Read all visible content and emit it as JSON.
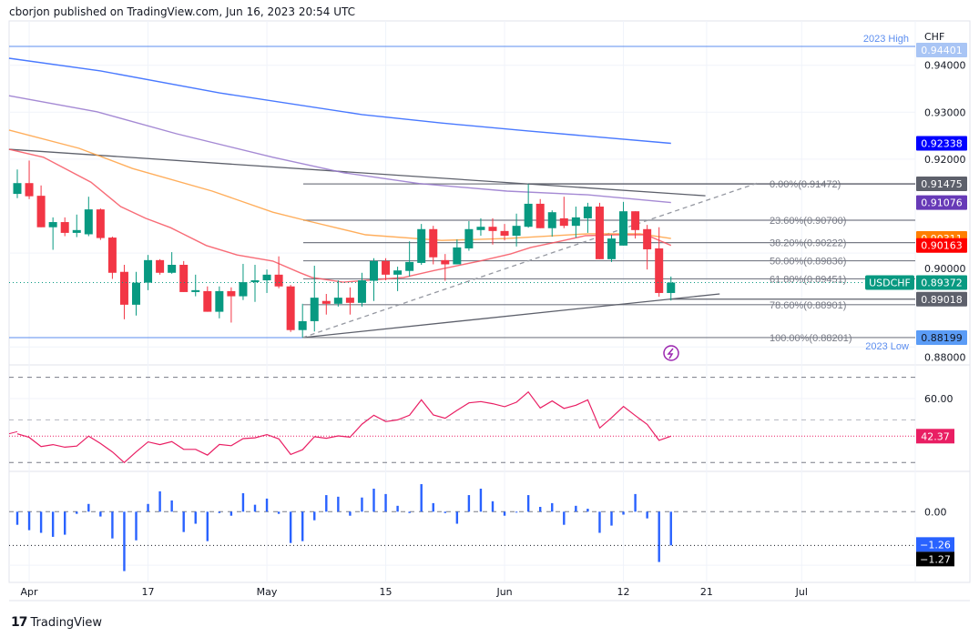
{
  "header": {
    "published": "cborjon published on TradingView.com, Jun 16, 2023 20:54 UTC"
  },
  "footer": {
    "brand": "TradingView",
    "logo_icon": "tradingview-logo-icon"
  },
  "colors": {
    "up": "#089981",
    "down": "#f23645",
    "ma_blue": "#2962ff",
    "ma_purple": "#9575cd",
    "ma_orange": "#ffa040",
    "ma_red": "#f7525f",
    "rsi": "#e91e63",
    "histogram": "#2962ff",
    "year_level": "#5b8def",
    "fib": "#787b86"
  },
  "chart_data": [
    {
      "type": "candlestick",
      "symbol": "USDCHF",
      "currency": "CHF",
      "y_ticks": [
        "0.94000",
        "0.93000",
        "0.92000",
        "0.90000",
        "0.88000"
      ],
      "x_ticks": [
        {
          "label": "Apr",
          "bar": 1
        },
        {
          "label": "17",
          "bar": 11
        },
        {
          "label": "May",
          "bar": 21
        },
        {
          "label": "15",
          "bar": 31
        },
        {
          "label": "Jun",
          "bar": 41
        },
        {
          "label": "12",
          "bar": 51
        },
        {
          "label": "21",
          "bar": 58
        },
        {
          "label": "Jul",
          "bar": 66
        }
      ],
      "ohlc": [
        [
          0.9126,
          0.9178,
          0.9117,
          0.9149
        ],
        [
          0.9149,
          0.9197,
          0.9115,
          0.9121
        ],
        [
          0.9122,
          0.9144,
          0.9055,
          0.9055
        ],
        [
          0.9055,
          0.9076,
          0.9007,
          0.9066
        ],
        [
          0.9066,
          0.9076,
          0.9036,
          0.9043
        ],
        [
          0.9043,
          0.9082,
          0.9034,
          0.9049
        ],
        [
          0.904,
          0.912,
          0.9036,
          0.9093
        ],
        [
          0.9093,
          0.9095,
          0.9028,
          0.9032
        ],
        [
          0.9033,
          0.9035,
          0.8945,
          0.8958
        ],
        [
          0.896,
          0.8975,
          0.8859,
          0.889
        ],
        [
          0.889,
          0.896,
          0.8867,
          0.8937
        ],
        [
          0.8937,
          0.8996,
          0.8921,
          0.8985
        ],
        [
          0.8985,
          0.8987,
          0.8954,
          0.8958
        ],
        [
          0.8958,
          0.9002,
          0.8956,
          0.8975
        ],
        [
          0.8975,
          0.8983,
          0.8917,
          0.8917
        ],
        [
          0.8917,
          0.8954,
          0.8908,
          0.8921
        ],
        [
          0.8919,
          0.8929,
          0.8875,
          0.8875
        ],
        [
          0.8875,
          0.8929,
          0.8861,
          0.8919
        ],
        [
          0.8919,
          0.8927,
          0.8852,
          0.8908
        ],
        [
          0.8908,
          0.8977,
          0.89,
          0.8938
        ],
        [
          0.8938,
          0.8975,
          0.8896,
          0.8942
        ],
        [
          0.8942,
          0.8965,
          0.8915,
          0.8954
        ],
        [
          0.8954,
          0.8993,
          0.8925,
          0.8929
        ],
        [
          0.8929,
          0.8932,
          0.8832,
          0.8836
        ],
        [
          0.8836,
          0.8892,
          0.882,
          0.8855
        ],
        [
          0.8855,
          0.8973,
          0.8833,
          0.8905
        ],
        [
          0.8898,
          0.8913,
          0.8869,
          0.8892
        ],
        [
          0.8892,
          0.8942,
          0.8886,
          0.8905
        ],
        [
          0.8905,
          0.8927,
          0.8869,
          0.8894
        ],
        [
          0.8894,
          0.8958,
          0.8886,
          0.8942
        ],
        [
          0.8941,
          0.8989,
          0.8898,
          0.8983
        ],
        [
          0.8983,
          0.8989,
          0.8942,
          0.8954
        ],
        [
          0.8954,
          0.8971,
          0.8919,
          0.8963
        ],
        [
          0.8962,
          0.9025,
          0.895,
          0.8981
        ],
        [
          0.8979,
          0.9062,
          0.8975,
          0.9051
        ],
        [
          0.9051,
          0.9058,
          0.8976,
          0.8991
        ],
        [
          0.8985,
          0.8998,
          0.8941,
          0.8976
        ],
        [
          0.8976,
          0.9029,
          0.8976,
          0.9012
        ],
        [
          0.901,
          0.9068,
          0.9005,
          0.9051
        ],
        [
          0.9049,
          0.9074,
          0.9037,
          0.9056
        ],
        [
          0.9056,
          0.9074,
          0.9018,
          0.9047
        ],
        [
          0.9047,
          0.9062,
          0.9027,
          0.9037
        ],
        [
          0.9037,
          0.9084,
          0.9014,
          0.9058
        ],
        [
          0.9056,
          0.9147,
          0.9054,
          0.9105
        ],
        [
          0.9105,
          0.9115,
          0.9053,
          0.9053
        ],
        [
          0.9053,
          0.9091,
          0.9035,
          0.9087
        ],
        [
          0.9074,
          0.912,
          0.9053,
          0.9058
        ],
        [
          0.9058,
          0.9099,
          0.9033,
          0.9076
        ],
        [
          0.9074,
          0.9107,
          0.9043,
          0.9099
        ],
        [
          0.9099,
          0.9107,
          0.8987,
          0.8987
        ],
        [
          0.8987,
          0.9039,
          0.8981,
          0.9031
        ],
        [
          0.9016,
          0.9109,
          0.9016,
          0.9089
        ],
        [
          0.9089,
          0.9089,
          0.9031,
          0.9049
        ],
        [
          0.9051,
          0.906,
          0.8965,
          0.9008
        ],
        [
          0.901,
          0.9055,
          0.8907,
          0.8915
        ],
        [
          0.8915,
          0.895,
          0.8899,
          0.89372
        ]
      ],
      "moving_averages": [
        {
          "color_key": "ma_blue",
          "last": "0.92338",
          "label_bg": "#0000ff",
          "points": [
            [
              -0.7,
              0.9415
            ],
            [
              7,
              0.9388
            ],
            [
              17,
              0.9341
            ],
            [
              29,
              0.9295
            ],
            [
              35.7,
              0.9277
            ],
            [
              43,
              0.926
            ],
            [
              55,
              0.92338
            ]
          ]
        },
        {
          "color_key": "ma_purple",
          "last": "0.91076",
          "label_bg": "#673ab7",
          "points": [
            [
              -0.7,
              0.9335
            ],
            [
              6.7,
              0.9301
            ],
            [
              13.4,
              0.9254
            ],
            [
              21.5,
              0.9204
            ],
            [
              27.5,
              0.9171
            ],
            [
              33.8,
              0.9148
            ],
            [
              41.2,
              0.9132
            ],
            [
              48,
              0.9124
            ],
            [
              55,
              0.91076
            ]
          ]
        },
        {
          "color_key": "ma_orange",
          "last": "0.90311",
          "label_bg": "#ff7f00",
          "points": [
            [
              -0.7,
              0.9262
            ],
            [
              5.2,
              0.9223
            ],
            [
              9.7,
              0.918
            ],
            [
              16.4,
              0.9132
            ],
            [
              21.5,
              0.9087
            ],
            [
              24.5,
              0.9068
            ],
            [
              29.3,
              0.9039
            ],
            [
              35.7,
              0.9027
            ],
            [
              41.2,
              0.9031
            ],
            [
              48,
              0.9041
            ],
            [
              52.4,
              0.9041
            ],
            [
              55,
              0.90311
            ]
          ]
        },
        {
          "color_key": "ma_red",
          "last": "0.90163",
          "label_bg": "#ff0000",
          "points": [
            [
              -0.7,
              0.9221
            ],
            [
              2.2,
              0.9204
            ],
            [
              6.2,
              0.9151
            ],
            [
              8.7,
              0.9099
            ],
            [
              10.8,
              0.9074
            ],
            [
              12.9,
              0.9054
            ],
            [
              15.9,
              0.9016
            ],
            [
              18.5,
              0.8996
            ],
            [
              21.5,
              0.8983
            ],
            [
              23.8,
              0.8958
            ],
            [
              24.8,
              0.8948
            ],
            [
              27.4,
              0.8938
            ],
            [
              32.5,
              0.8948
            ],
            [
              35.1,
              0.8963
            ],
            [
              38.9,
              0.8983
            ],
            [
              41.5,
              0.8998
            ],
            [
              43.2,
              0.9012
            ],
            [
              45.3,
              0.9023
            ],
            [
              47.8,
              0.9037
            ],
            [
              50.4,
              0.9039
            ],
            [
              52.9,
              0.9039
            ],
            [
              55,
              0.90163
            ]
          ]
        }
      ],
      "last_price": {
        "label": "USDCHF",
        "value": "0.89372"
      },
      "year_levels": [
        {
          "label": "2023 High",
          "value": 0.94401,
          "price_text": "0.94401"
        },
        {
          "label": "2023 Low",
          "value": 0.88199,
          "price_text": "0.88199"
        }
      ],
      "fibonacci": [
        {
          "label": "0.00%(0.91472)",
          "value": 0.91472
        },
        {
          "label": "23.60%(0.90700)",
          "value": 0.907
        },
        {
          "label": "38.20%(0.90222)",
          "value": 0.90222
        },
        {
          "label": "50.00%(0.89836)",
          "value": 0.89836
        },
        {
          "label": "61.80%(0.89451)",
          "value": 0.89451
        },
        {
          "label": "78.60%(0.88901)",
          "value": 0.88901
        },
        {
          "label": "100.00%(0.88201)",
          "value": 0.88201
        }
      ],
      "horizontal_rays": [
        {
          "value": 0.91475,
          "price_text": "0.91475"
        },
        {
          "value": 0.89018,
          "price_text": "0.89018"
        }
      ],
      "trend_lines": [
        {
          "style": "solid",
          "from": [
            -0.7,
            0.9221
          ],
          "to": [
            57.9,
            0.9122
          ]
        },
        {
          "style": "solid",
          "from": [
            24,
            0.882
          ],
          "to": [
            59.1,
            0.8913
          ]
        },
        {
          "style": "dashed",
          "from": [
            24,
            0.882
          ],
          "to": [
            62.5,
            0.9151
          ]
        }
      ],
      "event_icon": "lightning-icon"
    },
    {
      "type": "line",
      "levels": [
        70,
        50,
        30
      ],
      "y_ticks": [
        "60.00"
      ],
      "last": "42.37",
      "values": [
        43.5,
        41.8,
        37.5,
        38.4,
        37.2,
        37.7,
        42.4,
        38.9,
        35.0,
        30.0,
        35.0,
        39.7,
        38.4,
        39.8,
        36.2,
        36.2,
        33.5,
        38.5,
        37.9,
        41.2,
        41.6,
        43.1,
        41.1,
        33.8,
        36.0,
        42.1,
        41.4,
        42.5,
        41.9,
        48.0,
        52.2,
        49.2,
        50.0,
        52.2,
        59.4,
        52.3,
        50.8,
        54.5,
        58.0,
        58.6,
        57.6,
        56.2,
        58.3,
        63.1,
        55.6,
        58.9,
        55.4,
        56.9,
        59.4,
        46.2,
        51.0,
        56.3,
        52.0,
        47.9,
        40.4,
        42.37
      ]
    },
    {
      "type": "bar",
      "y_ticks": [
        "0.00"
      ],
      "last": "−1.26",
      "last_alt": "−1.27",
      "values": [
        -0.49,
        -0.69,
        -0.79,
        -0.94,
        -0.86,
        -0.08,
        0.29,
        -0.18,
        -1.0,
        -2.22,
        -1.07,
        0.29,
        0.76,
        0.42,
        -0.76,
        -0.45,
        -1.1,
        -0.05,
        -0.15,
        0.69,
        0.26,
        0.49,
        -0.08,
        -1.17,
        -1.1,
        -0.32,
        0.62,
        0.56,
        -0.15,
        0.53,
        0.86,
        0.66,
        0.22,
        -0.05,
        1.03,
        0.32,
        -0.05,
        -0.45,
        0.62,
        0.86,
        0.39,
        -0.15,
        -0.02,
        0.62,
        0.18,
        0.32,
        -0.49,
        0.22,
        0.11,
        -0.79,
        -0.52,
        -0.11,
        0.66,
        -0.25,
        -1.88,
        -1.26
      ]
    }
  ]
}
